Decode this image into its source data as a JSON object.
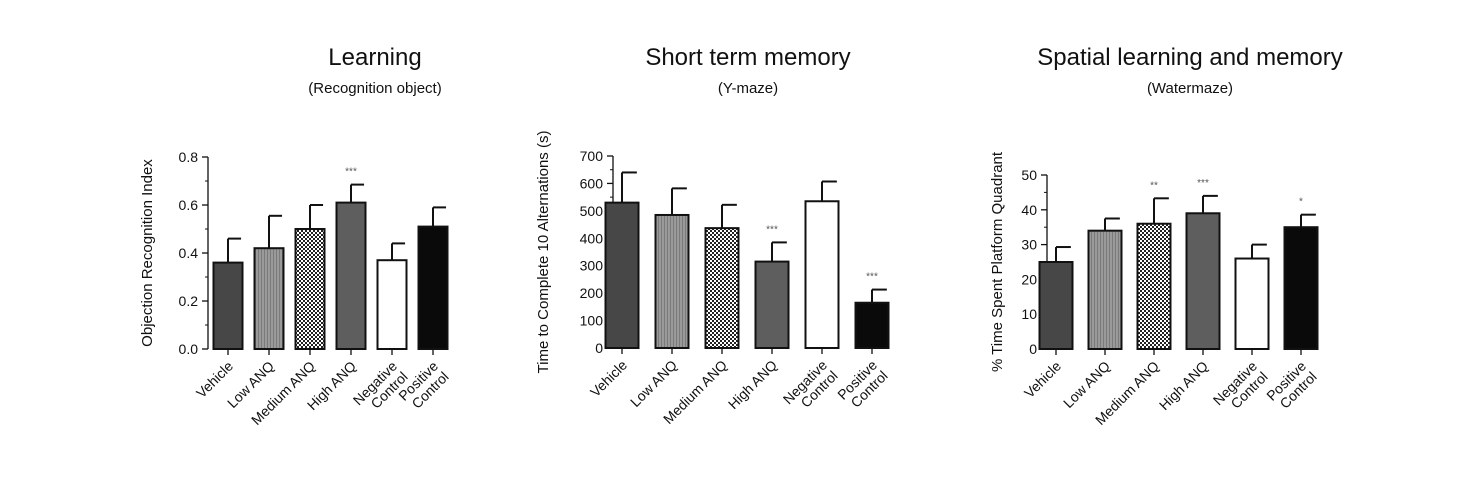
{
  "chart_data": [
    {
      "type": "bar",
      "title": "Learning",
      "subtitle": "(Recognition object)",
      "xlabel": "",
      "ylabel": "Objection Recognition Index",
      "ylim": [
        0,
        0.8
      ],
      "yticks": [
        "0.0",
        "0.2",
        "0.4",
        "0.6",
        "0.8"
      ],
      "categories": [
        "Vehicle",
        "Low ANQ",
        "Medium ANQ",
        "High ANQ",
        "Negative Control",
        "Positive Control"
      ],
      "values": [
        0.36,
        0.42,
        0.5,
        0.61,
        0.37,
        0.51
      ],
      "errors": [
        0.1,
        0.135,
        0.1,
        0.075,
        0.07,
        0.08
      ],
      "significance": [
        "",
        "",
        "",
        "***",
        "",
        ""
      ],
      "grid": false
    },
    {
      "type": "bar",
      "title": "Short term memory",
      "subtitle": "(Y-maze)",
      "xlabel": "",
      "ylabel": "Time to Complete 10 Alternations (s)",
      "ylim": [
        0,
        700
      ],
      "yticks": [
        "0",
        "100",
        "200",
        "300",
        "400",
        "500",
        "600",
        "700"
      ],
      "categories": [
        "Vehicle",
        "Low ANQ",
        "Medium ANQ",
        "High ANQ",
        "Negative Control",
        "Positive Control"
      ],
      "values": [
        530,
        485,
        437,
        315,
        535,
        165
      ],
      "errors": [
        110,
        97,
        85,
        70,
        72,
        48
      ],
      "significance": [
        "",
        "",
        "",
        "***",
        "",
        "***"
      ],
      "grid": false
    },
    {
      "type": "bar",
      "title": "Spatial learning and memory",
      "subtitle": "(Watermaze)",
      "xlabel": "",
      "ylabel": "% Time Spent Platform Quadrant",
      "ylim": [
        0,
        50
      ],
      "yticks": [
        "0",
        "10",
        "20",
        "30",
        "40",
        "50"
      ],
      "categories": [
        "Vehicle",
        "Low ANQ",
        "Medium ANQ",
        "High ANQ",
        "Negative Control",
        "Positive Control"
      ],
      "values": [
        25,
        34,
        36,
        39,
        26,
        35
      ],
      "errors": [
        4.3,
        3.5,
        7.3,
        5,
        4,
        3.6
      ],
      "significance": [
        "",
        "",
        "**",
        "***",
        "",
        "*"
      ],
      "grid": false
    }
  ],
  "bar_styles": [
    {
      "fill": "#474747",
      "pattern": "none"
    },
    {
      "fill": "#8a8a8a",
      "pattern": "stripes"
    },
    {
      "fill": "#ffffff",
      "pattern": "grid"
    },
    {
      "fill": "#5e5e5e",
      "pattern": "none"
    },
    {
      "fill": "#ffffff",
      "pattern": "none"
    },
    {
      "fill": "#0a0a0a",
      "pattern": "none"
    }
  ]
}
